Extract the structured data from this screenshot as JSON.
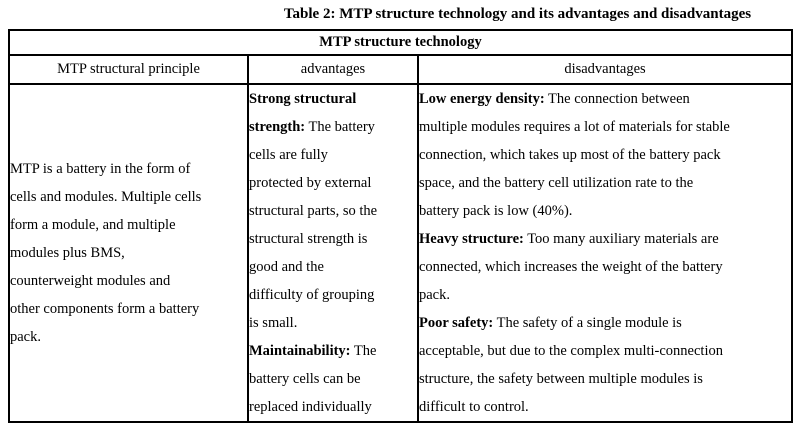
{
  "caption": "Table 2: MTP structure technology and its advantages and disadvantages",
  "table": {
    "title": "MTP structure technology",
    "columns": [
      {
        "label": "MTP structural principle"
      },
      {
        "label": "advantages"
      },
      {
        "label": "disadvantages"
      }
    ],
    "body": {
      "principle": [
        [
          {
            "t": "MTP is a battery in the form of"
          }
        ],
        [
          {
            "t": "cells and modules. Multiple cells"
          }
        ],
        [
          {
            "t": "form a module, and multiple"
          }
        ],
        [
          {
            "t": "modules plus BMS,"
          }
        ],
        [
          {
            "t": "counterweight modules and"
          }
        ],
        [
          {
            "t": "other components form a battery"
          }
        ],
        [
          {
            "t": "pack."
          }
        ]
      ],
      "advantages": [
        [
          {
            "t": "Strong structural",
            "b": true
          }
        ],
        [
          {
            "t": "strength:",
            "b": true
          },
          {
            "t": " The battery"
          }
        ],
        [
          {
            "t": "cells are fully"
          }
        ],
        [
          {
            "t": "protected by external"
          }
        ],
        [
          {
            "t": "structural parts, so the"
          }
        ],
        [
          {
            "t": "structural strength is"
          }
        ],
        [
          {
            "t": "good and the"
          }
        ],
        [
          {
            "t": "difficulty of grouping"
          }
        ],
        [
          {
            "t": "is small."
          }
        ],
        [
          {
            "t": "Maintainability:",
            "b": true
          },
          {
            "t": " The"
          }
        ],
        [
          {
            "t": "battery cells can be"
          }
        ],
        [
          {
            "t": "replaced individually"
          }
        ]
      ],
      "disadvantages": [
        [
          {
            "t": "Low energy density:",
            "b": true
          },
          {
            "t": " The connection between"
          }
        ],
        [
          {
            "t": "multiple modules requires a lot of materials for stable"
          }
        ],
        [
          {
            "t": "connection, which takes up most of the battery pack"
          }
        ],
        [
          {
            "t": "space, and the battery cell utilization rate to the"
          }
        ],
        [
          {
            "t": "battery pack is low (40%)."
          }
        ],
        [
          {
            "t": "Heavy structure:",
            "b": true
          },
          {
            "t": " Too many auxiliary materials are"
          }
        ],
        [
          {
            "t": "connected, which increases the weight of the battery"
          }
        ],
        [
          {
            "t": "pack."
          }
        ],
        [
          {
            "t": "Poor safety:",
            "b": true
          },
          {
            "t": " The safety of a single module is"
          }
        ],
        [
          {
            "t": "acceptable, but due to the complex multi-connection"
          }
        ],
        [
          {
            "t": "structure, the safety between multiple modules is"
          }
        ],
        [
          {
            "t": "difficult to control."
          }
        ]
      ]
    }
  }
}
